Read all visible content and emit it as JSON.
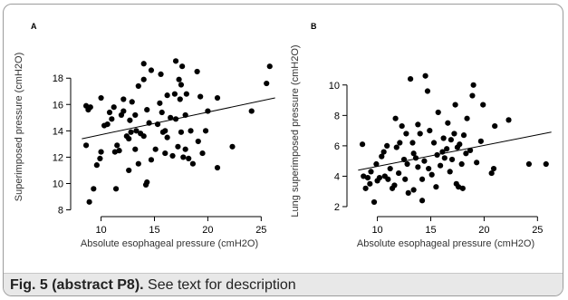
{
  "caption": {
    "label": "Fig. 5 (abstract P8).",
    "text": " See text for description"
  },
  "chart_data": [
    {
      "type": "scatter",
      "panel": "A",
      "xlabel": "Absolute esophageal pressure (cmH2O)",
      "ylabel": "Superimposed pressure (cmH2O)",
      "xlim": [
        8,
        26.5
      ],
      "ylim": [
        7.9,
        19.6
      ],
      "xticks": [
        10,
        15,
        20,
        25
      ],
      "yticks": [
        8,
        10,
        12,
        14,
        16,
        18
      ],
      "point_color": "#000000",
      "trendline": {
        "x": [
          8.2,
          26.3
        ],
        "y": [
          13.4,
          16.5
        ]
      },
      "points": [
        [
          8.6,
          15.9
        ],
        [
          8.8,
          15.6
        ],
        [
          9.0,
          15.8
        ],
        [
          8.6,
          12.9
        ],
        [
          8.9,
          8.6
        ],
        [
          9.3,
          9.6
        ],
        [
          9.6,
          11.4
        ],
        [
          9.9,
          11.9
        ],
        [
          10.0,
          12.4
        ],
        [
          10.3,
          14.4
        ],
        [
          10.0,
          16.5
        ],
        [
          10.6,
          14.5
        ],
        [
          10.8,
          15.4
        ],
        [
          11.0,
          14.9
        ],
        [
          11.2,
          15.8
        ],
        [
          11.3,
          12.4
        ],
        [
          11.5,
          12.9
        ],
        [
          11.7,
          12.5
        ],
        [
          11.4,
          9.6
        ],
        [
          11.9,
          15.2
        ],
        [
          12.1,
          15.5
        ],
        [
          12.1,
          16.4
        ],
        [
          12.4,
          13.6
        ],
        [
          12.6,
          13.4
        ],
        [
          12.8,
          13.9
        ],
        [
          12.7,
          14.8
        ],
        [
          12.6,
          11.0
        ],
        [
          12.9,
          16.2
        ],
        [
          13.2,
          15.2
        ],
        [
          13.3,
          14.0
        ],
        [
          13.2,
          12.6
        ],
        [
          13.5,
          11.5
        ],
        [
          13.5,
          17.4
        ],
        [
          13.7,
          13.8
        ],
        [
          14.0,
          13.6
        ],
        [
          14.0,
          17.9
        ],
        [
          14.0,
          19.1
        ],
        [
          14.3,
          15.6
        ],
        [
          14.5,
          14.6
        ],
        [
          14.7,
          18.6
        ],
        [
          14.7,
          11.8
        ],
        [
          14.3,
          10.1
        ],
        [
          14.2,
          9.9
        ],
        [
          15.1,
          12.6
        ],
        [
          15.3,
          14.5
        ],
        [
          15.5,
          16.1
        ],
        [
          15.6,
          18.3
        ],
        [
          15.7,
          15.4
        ],
        [
          15.8,
          13.9
        ],
        [
          16.0,
          14.0
        ],
        [
          16.0,
          12.3
        ],
        [
          16.2,
          13.5
        ],
        [
          16.2,
          16.7
        ],
        [
          16.5,
          15.0
        ],
        [
          16.7,
          12.1
        ],
        [
          16.9,
          16.8
        ],
        [
          17.0,
          14.9
        ],
        [
          17.0,
          19.3
        ],
        [
          17.2,
          12.8
        ],
        [
          17.3,
          17.9
        ],
        [
          17.4,
          16.4
        ],
        [
          17.5,
          17.5
        ],
        [
          17.5,
          13.9
        ],
        [
          17.6,
          18.9
        ],
        [
          17.7,
          12.0
        ],
        [
          17.9,
          12.6
        ],
        [
          17.9,
          15.2
        ],
        [
          18.0,
          16.8
        ],
        [
          18.2,
          11.9
        ],
        [
          18.4,
          14.0
        ],
        [
          18.6,
          11.5
        ],
        [
          19.0,
          18.5
        ],
        [
          19.1,
          13.2
        ],
        [
          19.3,
          16.6
        ],
        [
          19.5,
          12.3
        ],
        [
          19.8,
          14.0
        ],
        [
          20.0,
          15.5
        ],
        [
          20.9,
          11.2
        ],
        [
          20.9,
          16.5
        ],
        [
          22.3,
          12.8
        ],
        [
          24.1,
          15.5
        ],
        [
          25.5,
          17.6
        ],
        [
          25.8,
          18.9
        ]
      ]
    },
    {
      "type": "scatter",
      "panel": "B",
      "xlabel": "Absolute esophageal pressure (cmH2O)",
      "ylabel": "Lung superimposed pressure (cmH2O)",
      "xlim": [
        8,
        26.5
      ],
      "ylim": [
        1.7,
        11.3
      ],
      "xticks": [
        10,
        15,
        20,
        25
      ],
      "yticks": [
        2,
        4,
        6,
        8,
        10
      ],
      "point_color": "#000000",
      "trendline": {
        "x": [
          8.2,
          26.3
        ],
        "y": [
          4.4,
          6.9
        ]
      },
      "points": [
        [
          8.6,
          6.1
        ],
        [
          8.7,
          4.0
        ],
        [
          8.9,
          3.2
        ],
        [
          9.1,
          3.9
        ],
        [
          9.4,
          4.3
        ],
        [
          9.3,
          3.5
        ],
        [
          9.7,
          2.3
        ],
        [
          9.9,
          4.8
        ],
        [
          10.0,
          3.7
        ],
        [
          10.2,
          3.9
        ],
        [
          10.4,
          5.3
        ],
        [
          10.6,
          5.6
        ],
        [
          10.7,
          4.0
        ],
        [
          10.9,
          6.0
        ],
        [
          11.0,
          3.8
        ],
        [
          11.2,
          4.5
        ],
        [
          11.4,
          3.2
        ],
        [
          11.6,
          3.4
        ],
        [
          11.7,
          7.8
        ],
        [
          11.8,
          5.9
        ],
        [
          12.0,
          4.2
        ],
        [
          12.1,
          6.2
        ],
        [
          12.3,
          7.3
        ],
        [
          12.5,
          5.1
        ],
        [
          12.6,
          3.8
        ],
        [
          12.8,
          4.8
        ],
        [
          12.7,
          6.8
        ],
        [
          12.9,
          2.9
        ],
        [
          13.1,
          10.4
        ],
        [
          13.3,
          6.2
        ],
        [
          13.4,
          5.5
        ],
        [
          13.4,
          3.1
        ],
        [
          13.6,
          5.2
        ],
        [
          13.8,
          4.6
        ],
        [
          13.8,
          7.4
        ],
        [
          14.0,
          6.8
        ],
        [
          14.2,
          2.4
        ],
        [
          14.2,
          3.8
        ],
        [
          14.4,
          5.0
        ],
        [
          14.5,
          10.6
        ],
        [
          14.7,
          9.6
        ],
        [
          14.8,
          4.5
        ],
        [
          14.9,
          7.0
        ],
        [
          15.1,
          4.1
        ],
        [
          15.3,
          6.2
        ],
        [
          15.5,
          3.3
        ],
        [
          15.6,
          5.4
        ],
        [
          15.7,
          8.2
        ],
        [
          15.9,
          4.7
        ],
        [
          16.1,
          5.6
        ],
        [
          16.2,
          6.5
        ],
        [
          16.3,
          5.2
        ],
        [
          16.5,
          5.8
        ],
        [
          16.6,
          7.5
        ],
        [
          16.8,
          4.3
        ],
        [
          16.9,
          6.4
        ],
        [
          17.0,
          5.1
        ],
        [
          17.2,
          6.8
        ],
        [
          17.3,
          8.7
        ],
        [
          17.4,
          3.5
        ],
        [
          17.5,
          5.9
        ],
        [
          17.6,
          3.3
        ],
        [
          17.7,
          6.1
        ],
        [
          17.9,
          4.8
        ],
        [
          18.0,
          3.2
        ],
        [
          18.1,
          6.7
        ],
        [
          18.3,
          5.5
        ],
        [
          18.4,
          7.8
        ],
        [
          18.7,
          5.7
        ],
        [
          18.9,
          9.3
        ],
        [
          19.0,
          10.0
        ],
        [
          19.3,
          4.9
        ],
        [
          19.7,
          6.3
        ],
        [
          19.9,
          8.7
        ],
        [
          20.7,
          4.2
        ],
        [
          20.9,
          4.5
        ],
        [
          21.0,
          7.3
        ],
        [
          22.3,
          7.7
        ],
        [
          24.2,
          4.8
        ],
        [
          25.8,
          4.8
        ]
      ]
    }
  ]
}
